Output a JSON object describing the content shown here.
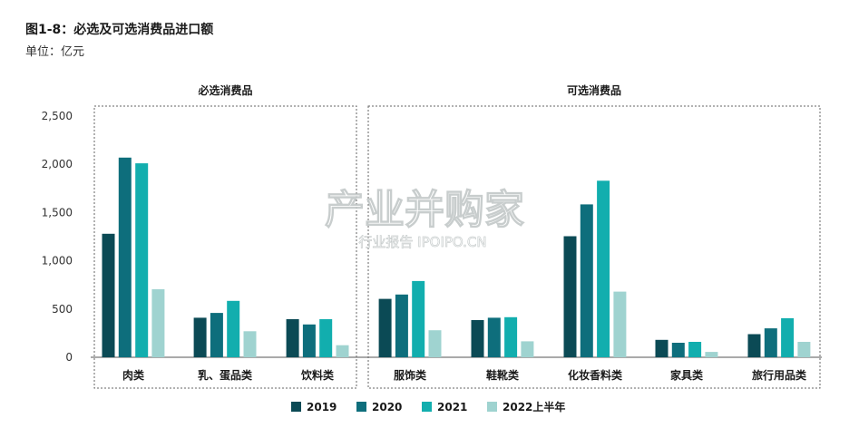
{
  "title": "图1-8：必选及可选消费品进口额",
  "unit": "单位：亿元",
  "watermark": {
    "main": "产业并购家",
    "sub": "行业报告 IPOIPO.CN"
  },
  "chart_data": {
    "type": "bar",
    "ylim": [
      0,
      2500
    ],
    "yticks": [
      0,
      500,
      1000,
      1500,
      2000,
      2500
    ],
    "ytick_labels": [
      "0",
      "500",
      "1,000",
      "1,500",
      "2,000",
      "2,500"
    ],
    "grid": false,
    "legend_position": "bottom",
    "groups": [
      {
        "label": "必选消费品",
        "categories": [
          "肉类",
          "乳、蛋品类",
          "饮料类"
        ]
      },
      {
        "label": "可选消费品",
        "categories": [
          "服饰类",
          "鞋靴类",
          "化妆香料类",
          "家具类",
          "旅行用品类"
        ]
      }
    ],
    "categories": [
      "肉类",
      "乳、蛋品类",
      "饮料类",
      "服饰类",
      "鞋靴类",
      "化妆香料类",
      "家具类",
      "旅行用品类"
    ],
    "series": [
      {
        "name": "2019",
        "color": "#0b4a55",
        "values": [
          1280,
          410,
          395,
          605,
          385,
          1255,
          180,
          240
        ]
      },
      {
        "name": "2020",
        "color": "#0e6e7c",
        "values": [
          2070,
          460,
          340,
          650,
          410,
          1585,
          150,
          300
        ]
      },
      {
        "name": "2021",
        "color": "#12aeae",
        "values": [
          2010,
          585,
          395,
          790,
          415,
          1830,
          160,
          405
        ]
      },
      {
        "name": "2022上半年",
        "color": "#9fd3d0",
        "values": [
          705,
          270,
          125,
          280,
          165,
          680,
          55,
          160
        ]
      }
    ]
  }
}
